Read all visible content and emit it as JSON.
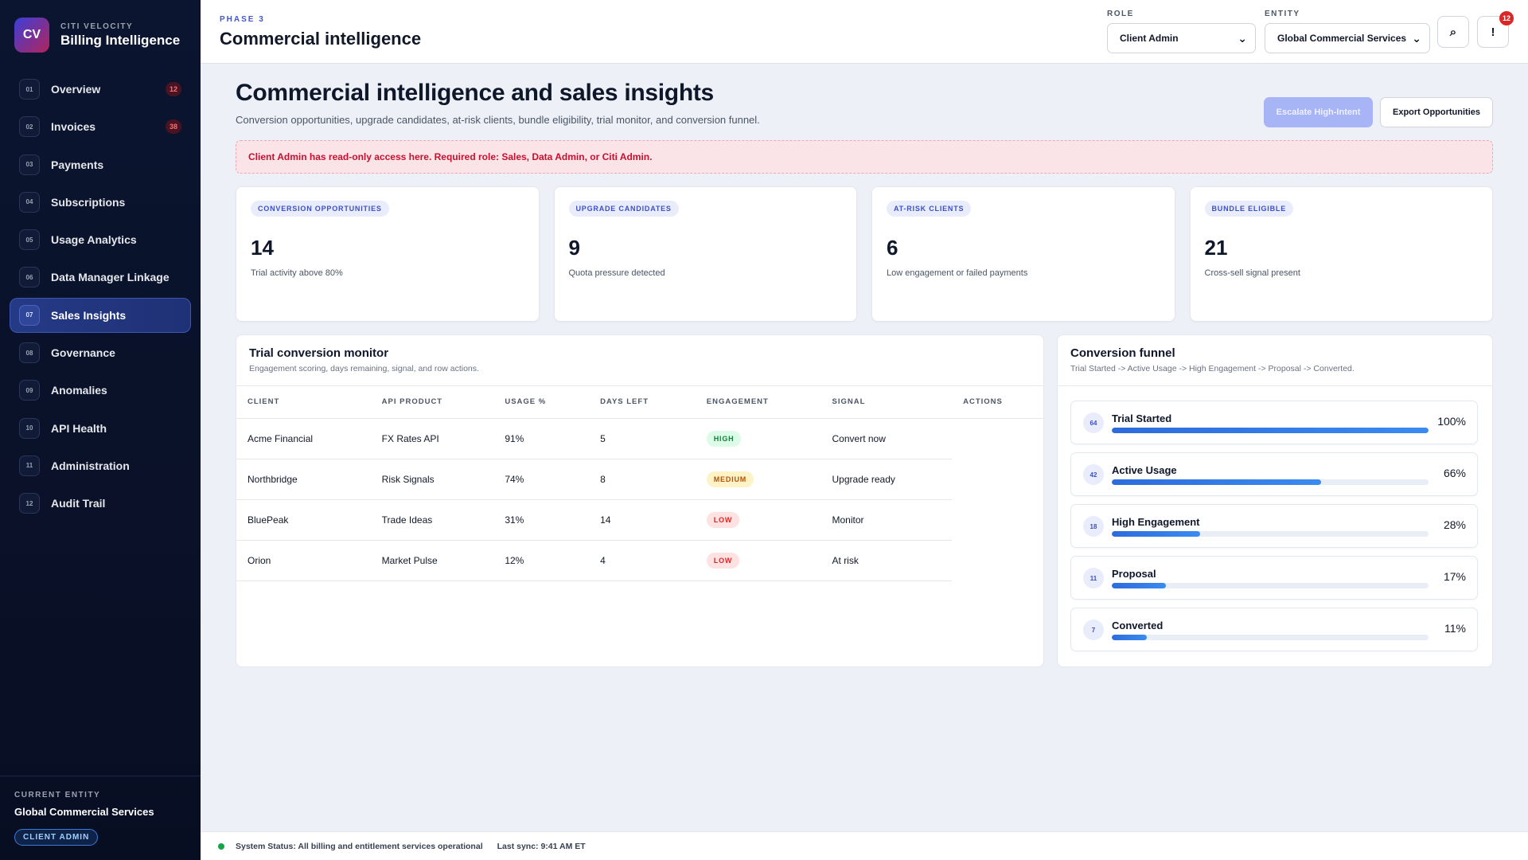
{
  "brand": {
    "logo": "CV",
    "sub": "CITI VELOCITY",
    "title": "Billing Intelligence"
  },
  "nav": [
    {
      "num": "01",
      "label": "Overview",
      "badge": "12"
    },
    {
      "num": "02",
      "label": "Invoices",
      "badge": "38"
    },
    {
      "num": "03",
      "label": "Payments",
      "badge": ""
    },
    {
      "num": "04",
      "label": "Subscriptions",
      "badge": ""
    },
    {
      "num": "05",
      "label": "Usage Analytics",
      "badge": ""
    },
    {
      "num": "06",
      "label": "Data Manager Linkage",
      "badge": ""
    },
    {
      "num": "07",
      "label": "Sales Insights",
      "badge": "",
      "active": true
    },
    {
      "num": "08",
      "label": "Governance",
      "badge": ""
    },
    {
      "num": "09",
      "label": "Anomalies",
      "badge": ""
    },
    {
      "num": "10",
      "label": "API Health",
      "badge": ""
    },
    {
      "num": "11",
      "label": "Administration",
      "badge": ""
    },
    {
      "num": "12",
      "label": "Audit Trail",
      "badge": ""
    }
  ],
  "sidebar_footer": {
    "label": "CURRENT ENTITY",
    "entity": "Global Commercial Services",
    "role": "CLIENT ADMIN"
  },
  "header": {
    "phase": "PHASE 3",
    "title": "Commercial intelligence",
    "role_label": "ROLE",
    "role_value": "Client Admin",
    "entity_label": "ENTITY",
    "entity_value": "Global Commercial Services",
    "search_glyph": "⌕",
    "alert_glyph": "!",
    "notif_count": "12"
  },
  "page": {
    "title": "Commercial intelligence and sales insights",
    "description": "Conversion opportunities, upgrade candidates, at-risk clients, bundle eligibility, trial monitor, and conversion funnel.",
    "primary_button": "Escalate High-Intent",
    "secondary_button": "Export Opportunities",
    "alert": "Client Admin has read-only access here. Required role: Sales, Data Admin, or Citi Admin."
  },
  "kpis": [
    {
      "label": "CONVERSION OPPORTUNITIES",
      "value": "14",
      "note": "Trial activity above 80%"
    },
    {
      "label": "UPGRADE CANDIDATES",
      "value": "9",
      "note": "Quota pressure detected"
    },
    {
      "label": "AT-RISK CLIENTS",
      "value": "6",
      "note": "Low engagement or failed payments"
    },
    {
      "label": "BUNDLE ELIGIBLE",
      "value": "21",
      "note": "Cross-sell signal present"
    }
  ],
  "monitor": {
    "title": "Trial conversion monitor",
    "subtitle": "Engagement scoring, days remaining, signal, and row actions.",
    "columns": [
      "CLIENT",
      "API PRODUCT",
      "USAGE %",
      "DAYS LEFT",
      "ENGAGEMENT",
      "SIGNAL",
      "ACTIONS"
    ],
    "rows": [
      {
        "client": "Acme Financial",
        "product": "FX Rates API",
        "usage": "91%",
        "days": "5",
        "engagement": "HIGH",
        "level": "high",
        "signal": "Convert now"
      },
      {
        "client": "Northbridge",
        "product": "Risk Signals",
        "usage": "74%",
        "days": "8",
        "engagement": "MEDIUM",
        "level": "medium",
        "signal": "Upgrade ready"
      },
      {
        "client": "BluePeak",
        "product": "Trade Ideas",
        "usage": "31%",
        "days": "14",
        "engagement": "LOW",
        "level": "low",
        "signal": "Monitor"
      },
      {
        "client": "Orion",
        "product": "Market Pulse",
        "usage": "12%",
        "days": "4",
        "engagement": "LOW",
        "level": "low",
        "signal": "At risk"
      }
    ]
  },
  "funnel": {
    "title": "Conversion funnel",
    "subtitle": "Trial Started -> Active Usage -> High Engagement -> Proposal -> Converted.",
    "stages": [
      {
        "count": "64",
        "name": "Trial Started",
        "pct": "100%",
        "fill": 1.0
      },
      {
        "count": "42",
        "name": "Active Usage",
        "pct": "66%",
        "fill": 0.66
      },
      {
        "count": "18",
        "name": "High Engagement",
        "pct": "28%",
        "fill": 0.28
      },
      {
        "count": "11",
        "name": "Proposal",
        "pct": "17%",
        "fill": 0.17
      },
      {
        "count": "7",
        "name": "Converted",
        "pct": "11%",
        "fill": 0.11
      }
    ]
  },
  "statusbar": {
    "status": "System Status: All billing and entitlement services operational",
    "sync": "Last sync: 9:41 AM ET"
  }
}
